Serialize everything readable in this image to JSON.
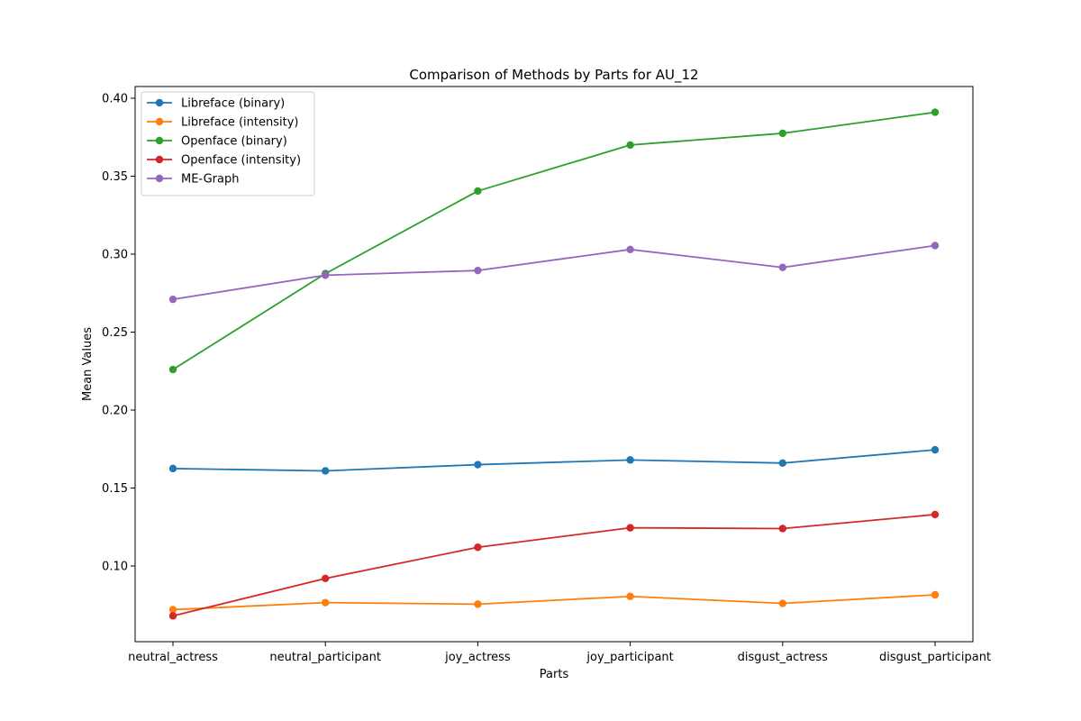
{
  "chart_data": {
    "type": "line",
    "title": "Comparison of Methods by Parts for AU_12",
    "xlabel": "Parts",
    "ylabel": "Mean Values",
    "categories": [
      "neutral_actress",
      "neutral_participant",
      "joy_actress",
      "joy_participant",
      "disgust_actress",
      "disgust_participant"
    ],
    "ylim": [
      0.05,
      0.41
    ],
    "yticks": [
      "0.10",
      "0.15",
      "0.20",
      "0.25",
      "0.30",
      "0.35",
      "0.40"
    ],
    "grid": false,
    "legend_position": "top-left",
    "series": [
      {
        "name": "Libreface (binary)",
        "color": "#1f77b4",
        "values": [
          0.1625,
          0.161,
          0.165,
          0.168,
          0.166,
          0.1745
        ]
      },
      {
        "name": "Libreface (intensity)",
        "color": "#ff7f0e",
        "values": [
          0.072,
          0.0765,
          0.0755,
          0.0805,
          0.076,
          0.0815
        ]
      },
      {
        "name": "Openface (binary)",
        "color": "#2ca02c",
        "values": [
          0.226,
          0.2875,
          0.3405,
          0.37,
          0.3775,
          0.391
        ]
      },
      {
        "name": "Openface (intensity)",
        "color": "#d62728",
        "values": [
          0.068,
          0.092,
          0.112,
          0.1245,
          0.124,
          0.133
        ]
      },
      {
        "name": "ME-Graph",
        "color": "#9467bd",
        "values": [
          0.271,
          0.2865,
          0.2895,
          0.303,
          0.2915,
          0.3055
        ]
      }
    ]
  }
}
